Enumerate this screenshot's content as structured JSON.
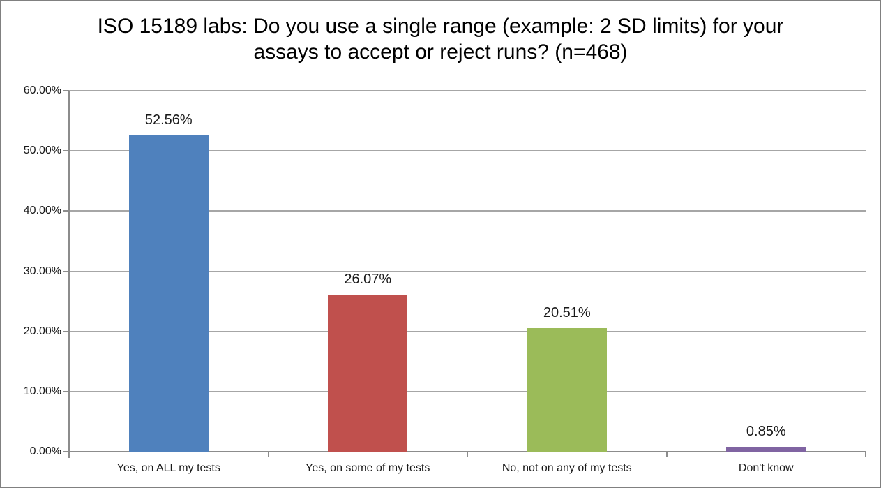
{
  "window": {
    "background": "#ffffff",
    "border_color": "#808080"
  },
  "chart_data": {
    "type": "bar",
    "title": "ISO 15189 labs: Do you use a single range (example: 2 SD limits) for your assays to accept or reject runs? (n=468)",
    "categories": [
      "Yes, on ALL my tests",
      "Yes, on some of my tests",
      "No, not on any of my tests",
      "Don't know"
    ],
    "values": [
      52.56,
      26.07,
      20.51,
      0.85
    ],
    "value_labels": [
      "52.56%",
      "26.07%",
      "20.51%",
      "0.85%"
    ],
    "bar_colors": [
      "#4F81BD",
      "#C0504D",
      "#9BBB59",
      "#8064A2"
    ],
    "xlabel": "",
    "ylabel": "",
    "ylim": [
      0,
      60
    ],
    "ytick_step": 10,
    "ytick_labels": [
      "0.00%",
      "10.00%",
      "20.00%",
      "30.00%",
      "40.00%",
      "50.00%",
      "60.00%"
    ],
    "grid": true,
    "legend": "none",
    "gridline_color": "#A6A6A6",
    "axis_color": "#8C8C8C"
  }
}
